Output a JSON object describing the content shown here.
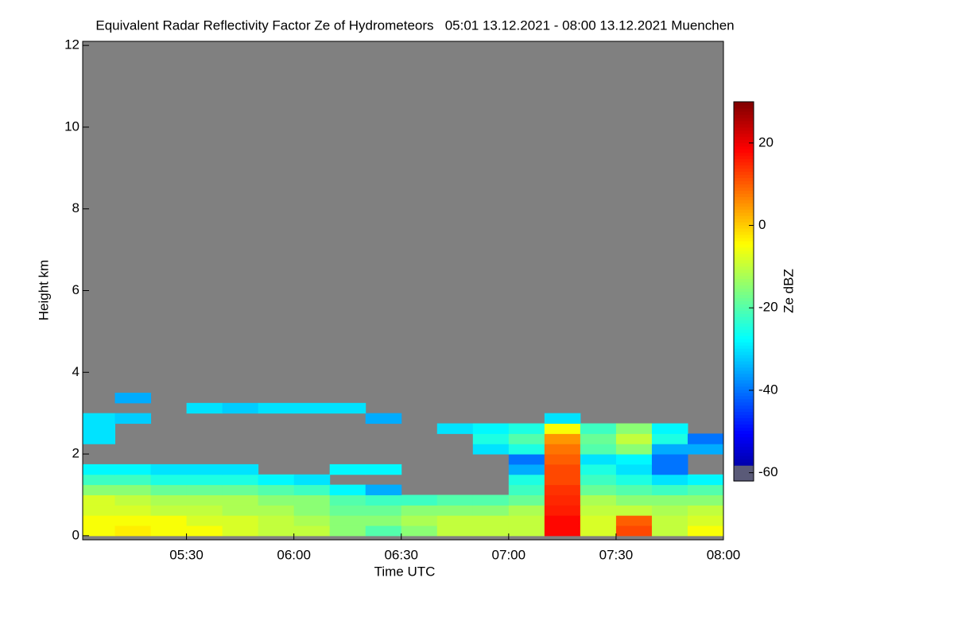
{
  "chart_data": {
    "type": "heatmap",
    "title": "Equivalent Radar Reflectivity Factor Ze of Hydrometeors   05:01 13.12.2021 - 08:00 13.12.2021 Muenchen",
    "x_label": "Time UTC",
    "y_label": "Height km",
    "colorbar_label": "Ze dBZ",
    "colormap": "jet",
    "background_color": "#808080",
    "x_edges": [
      301,
      310,
      320,
      330,
      340,
      350,
      360,
      370,
      380,
      390,
      400,
      410,
      420,
      430,
      440,
      450,
      460,
      470,
      480
    ],
    "y_edges": [
      0,
      0.25,
      0.5,
      0.75,
      1.0,
      1.25,
      1.5,
      1.75,
      2.0,
      2.25,
      2.5,
      2.75,
      3.0,
      3.25,
      3.5
    ],
    "z": [
      [
        -5,
        -3,
        -5,
        -5,
        -8,
        -10,
        -10,
        -15,
        -20,
        -15,
        -10,
        -10,
        -10,
        18,
        -8,
        12,
        -10,
        -5
      ],
      [
        -5,
        -5,
        -5,
        -8,
        -8,
        -10,
        -12,
        -15,
        -15,
        -12,
        -10,
        -10,
        -10,
        18,
        -8,
        10,
        -10,
        -8
      ],
      [
        -8,
        -8,
        -10,
        -10,
        -12,
        -12,
        -15,
        -18,
        -18,
        -15,
        -15,
        -15,
        -12,
        16,
        -10,
        -10,
        -12,
        -10
      ],
      [
        -8,
        -10,
        -12,
        -12,
        -12,
        -15,
        -15,
        -20,
        -22,
        -22,
        -20,
        -20,
        -18,
        15,
        -12,
        -15,
        -15,
        -15
      ],
      [
        -15,
        -15,
        -18,
        -18,
        -18,
        -20,
        -22,
        -28,
        -35,
        null,
        null,
        null,
        -22,
        14,
        -18,
        -20,
        -22,
        -20
      ],
      [
        -22,
        -22,
        -25,
        -25,
        -25,
        -28,
        -30,
        null,
        null,
        null,
        null,
        null,
        -25,
        12,
        -22,
        -25,
        -30,
        -28
      ],
      [
        -28,
        -28,
        -30,
        -30,
        -30,
        null,
        null,
        -28,
        -28,
        null,
        null,
        null,
        -35,
        12,
        -25,
        -30,
        -40,
        null
      ],
      [
        null,
        null,
        null,
        null,
        null,
        null,
        null,
        null,
        null,
        null,
        null,
        null,
        -40,
        10,
        -30,
        -28,
        -40,
        null
      ],
      [
        null,
        null,
        null,
        null,
        null,
        null,
        null,
        null,
        null,
        null,
        null,
        -30,
        -25,
        8,
        -20,
        -15,
        -35,
        -35
      ],
      [
        -30,
        null,
        null,
        null,
        null,
        null,
        null,
        null,
        null,
        null,
        null,
        -25,
        -20,
        5,
        -18,
        -10,
        -25,
        -40
      ],
      [
        -30,
        null,
        null,
        null,
        null,
        null,
        null,
        null,
        null,
        null,
        -30,
        -28,
        -25,
        -5,
        -22,
        -15,
        -28,
        null
      ],
      [
        -30,
        -32,
        null,
        null,
        null,
        null,
        null,
        null,
        -35,
        null,
        null,
        null,
        null,
        -30,
        null,
        null,
        null,
        null
      ],
      [
        null,
        null,
        null,
        -30,
        -32,
        -30,
        -30,
        -30,
        null,
        null,
        null,
        null,
        null,
        null,
        null,
        null,
        null,
        null
      ],
      [
        null,
        -35,
        null,
        null,
        null,
        null,
        null,
        null,
        null,
        null,
        null,
        null,
        null,
        null,
        null,
        null,
        null,
        null
      ]
    ],
    "xlim": [
      301,
      480
    ],
    "xticks": [
      {
        "value": 330,
        "label": "05:30"
      },
      {
        "value": 360,
        "label": "06:00"
      },
      {
        "value": 390,
        "label": "06:30"
      },
      {
        "value": 420,
        "label": "07:00"
      },
      {
        "value": 450,
        "label": "07:30"
      },
      {
        "value": 480,
        "label": "08:00"
      }
    ],
    "ylim": [
      -0.1,
      12.1
    ],
    "yticks": [
      0,
      2,
      4,
      6,
      8,
      10,
      12
    ],
    "clim": [
      -62,
      30
    ],
    "cticks": [
      -60,
      -40,
      -20,
      0,
      20
    ]
  }
}
